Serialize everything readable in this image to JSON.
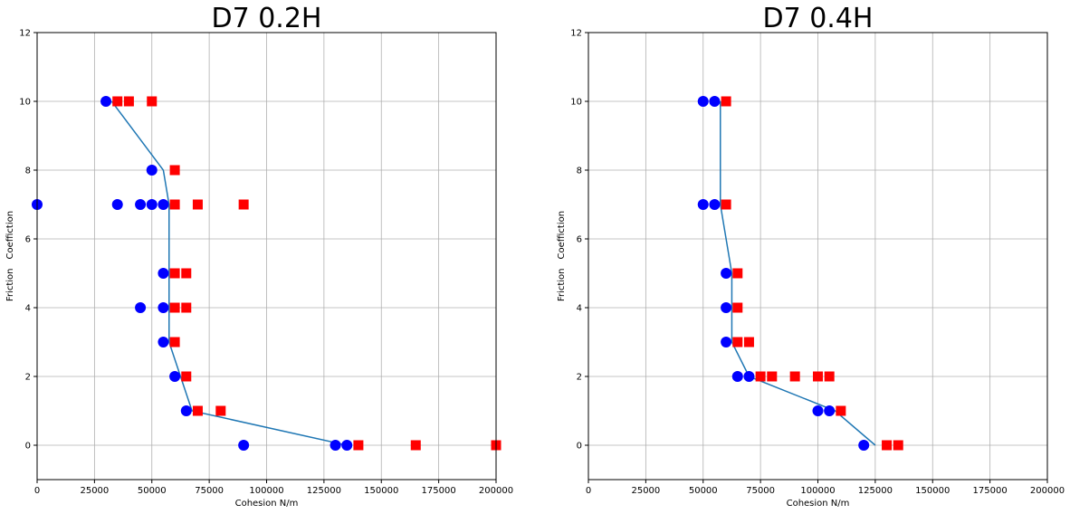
{
  "chart_data": [
    {
      "type": "scatter",
      "title": "D7 0.2H",
      "xlabel": "Cohesion N/m",
      "ylabel": "Friction　Coeffiction",
      "xlim": [
        0,
        200000
      ],
      "ylim": [
        -1,
        12
      ],
      "xticks": [
        "0",
        "25000",
        "50000",
        "75000",
        "100000",
        "125000",
        "150000",
        "175000",
        "200000"
      ],
      "yticks": [
        "0",
        "2",
        "4",
        "6",
        "8",
        "10",
        "12"
      ],
      "grid": true,
      "series": [
        {
          "marker": "circle",
          "color": "#0000ff",
          "points": [
            [
              30000,
              10
            ],
            [
              50000,
              8
            ],
            [
              0,
              7
            ],
            [
              35000,
              7
            ],
            [
              45000,
              7
            ],
            [
              50000,
              7
            ],
            [
              55000,
              7
            ],
            [
              55000,
              5
            ],
            [
              45000,
              4
            ],
            [
              55000,
              4
            ],
            [
              55000,
              3
            ],
            [
              60000,
              2
            ],
            [
              65000,
              1
            ],
            [
              90000,
              0
            ],
            [
              130000,
              0
            ],
            [
              135000,
              0
            ]
          ]
        },
        {
          "marker": "square",
          "color": "#ff0000",
          "points": [
            [
              35000,
              10
            ],
            [
              40000,
              10
            ],
            [
              50000,
              10
            ],
            [
              60000,
              8
            ],
            [
              60000,
              7
            ],
            [
              70000,
              7
            ],
            [
              90000,
              7
            ],
            [
              60000,
              5
            ],
            [
              65000,
              5
            ],
            [
              60000,
              4
            ],
            [
              65000,
              4
            ],
            [
              60000,
              3
            ],
            [
              65000,
              2
            ],
            [
              70000,
              1
            ],
            [
              80000,
              1
            ],
            [
              140000,
              0
            ],
            [
              165000,
              0
            ],
            [
              200000,
              0
            ]
          ]
        },
        {
          "marker": "line",
          "color": "#1f77b4",
          "points": [
            [
              32500,
              10
            ],
            [
              55000,
              8
            ],
            [
              57500,
              7
            ],
            [
              57500,
              5
            ],
            [
              57500,
              4
            ],
            [
              57500,
              3
            ],
            [
              62500,
              2
            ],
            [
              67500,
              1
            ],
            [
              135000,
              0
            ]
          ]
        }
      ]
    },
    {
      "type": "scatter",
      "title": "D7 0.4H",
      "xlabel": "Cohesion N/m",
      "ylabel": "Friction　Coeffiction",
      "xlim": [
        0,
        200000
      ],
      "ylim": [
        -1,
        12
      ],
      "xticks": [
        "0",
        "25000",
        "50000",
        "75000",
        "100000",
        "125000",
        "150000",
        "175000",
        "200000"
      ],
      "yticks": [
        "0",
        "2",
        "4",
        "6",
        "8",
        "10",
        "12"
      ],
      "grid": true,
      "series": [
        {
          "marker": "circle",
          "color": "#0000ff",
          "points": [
            [
              50000,
              10
            ],
            [
              55000,
              10
            ],
            [
              50000,
              7
            ],
            [
              55000,
              7
            ],
            [
              60000,
              5
            ],
            [
              60000,
              4
            ],
            [
              60000,
              3
            ],
            [
              65000,
              2
            ],
            [
              70000,
              2
            ],
            [
              100000,
              1
            ],
            [
              105000,
              1
            ],
            [
              120000,
              0
            ]
          ]
        },
        {
          "marker": "square",
          "color": "#ff0000",
          "points": [
            [
              60000,
              10
            ],
            [
              60000,
              7
            ],
            [
              65000,
              5
            ],
            [
              65000,
              4
            ],
            [
              65000,
              3
            ],
            [
              70000,
              3
            ],
            [
              75000,
              2
            ],
            [
              80000,
              2
            ],
            [
              90000,
              2
            ],
            [
              100000,
              2
            ],
            [
              105000,
              2
            ],
            [
              110000,
              1
            ],
            [
              130000,
              0
            ],
            [
              135000,
              0
            ]
          ]
        },
        {
          "marker": "line",
          "color": "#1f77b4",
          "points": [
            [
              57500,
              10
            ],
            [
              57500,
              7
            ],
            [
              62500,
              5
            ],
            [
              62500,
              4
            ],
            [
              62500,
              3
            ],
            [
              70000,
              2
            ],
            [
              107500,
              1
            ],
            [
              125000,
              0
            ]
          ]
        }
      ]
    }
  ]
}
